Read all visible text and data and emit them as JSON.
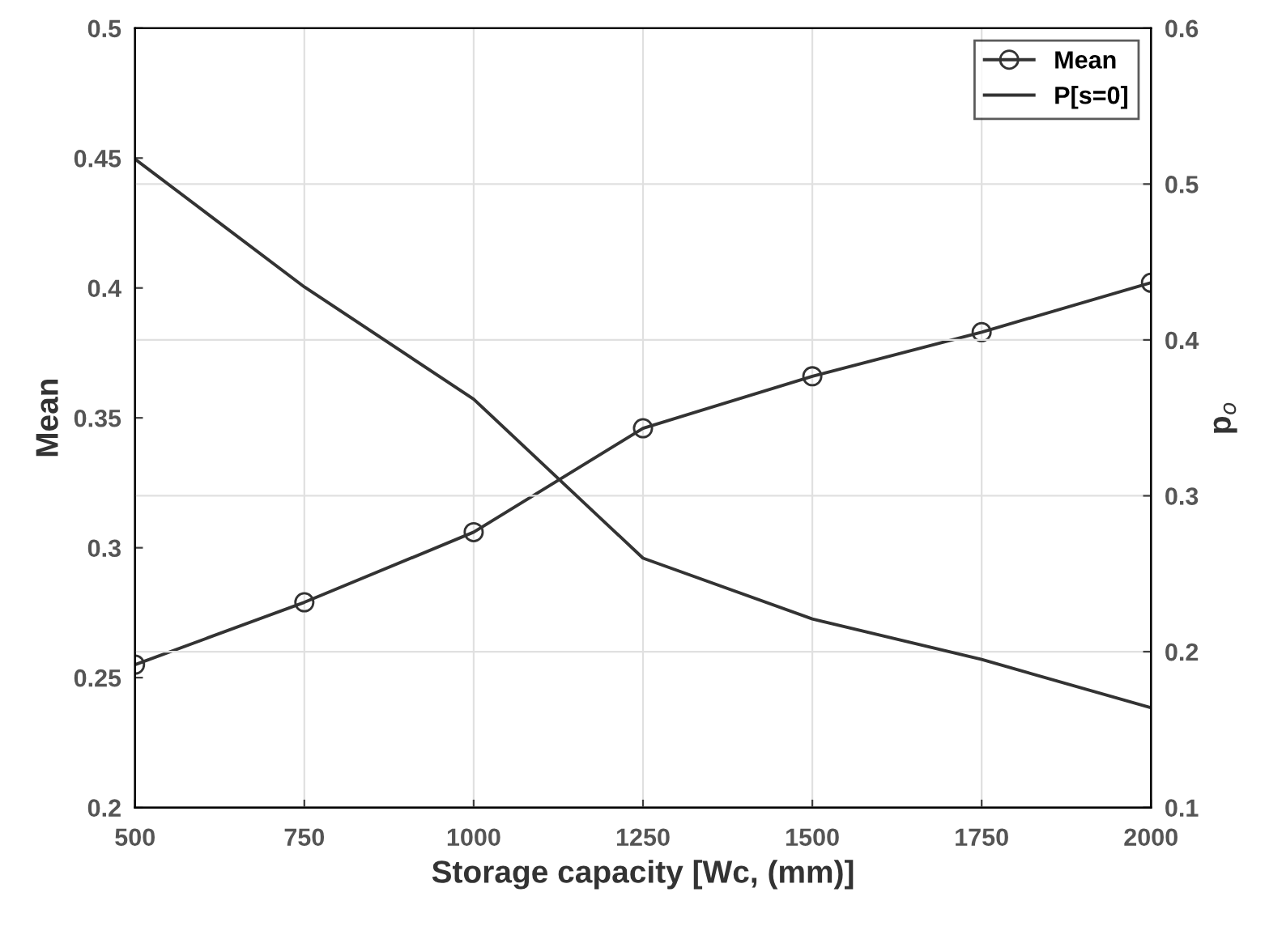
{
  "chart_data": {
    "type": "line",
    "xlabel": "Storage capacity [Wc, (mm)]",
    "ylabel": "Mean",
    "y2label": "p$_{o}$",
    "x": [
      500,
      750,
      1000,
      1250,
      1500,
      1750,
      2000
    ],
    "series": [
      {
        "name": "Mean",
        "color": "#333333",
        "marker": "circle",
        "values": [
          0.255,
          0.279,
          0.306,
          0.346,
          0.366,
          0.383,
          0.402
        ]
      },
      {
        "name": "P[s=0]",
        "color": "#333333",
        "axis": "y2",
        "marker": "none",
        "values": [
          0.516,
          0.434,
          0.362,
          0.26,
          0.221,
          0.195,
          0.164
        ]
      }
    ],
    "xlim": [
      500,
      2000
    ],
    "xticks": [
      500,
      750,
      1000,
      1250,
      1500,
      1750,
      2000
    ],
    "ylim": [
      0.2,
      0.5
    ],
    "yticks": [
      0.2,
      0.25,
      0.3,
      0.35,
      0.4,
      0.45,
      0.5
    ],
    "y2lim": [
      0.1,
      0.6
    ],
    "y2ticks": [
      0.1,
      0.2,
      0.3,
      0.4,
      0.5,
      0.6
    ],
    "grid": true,
    "legend": "top right",
    "line_style": "solid"
  }
}
